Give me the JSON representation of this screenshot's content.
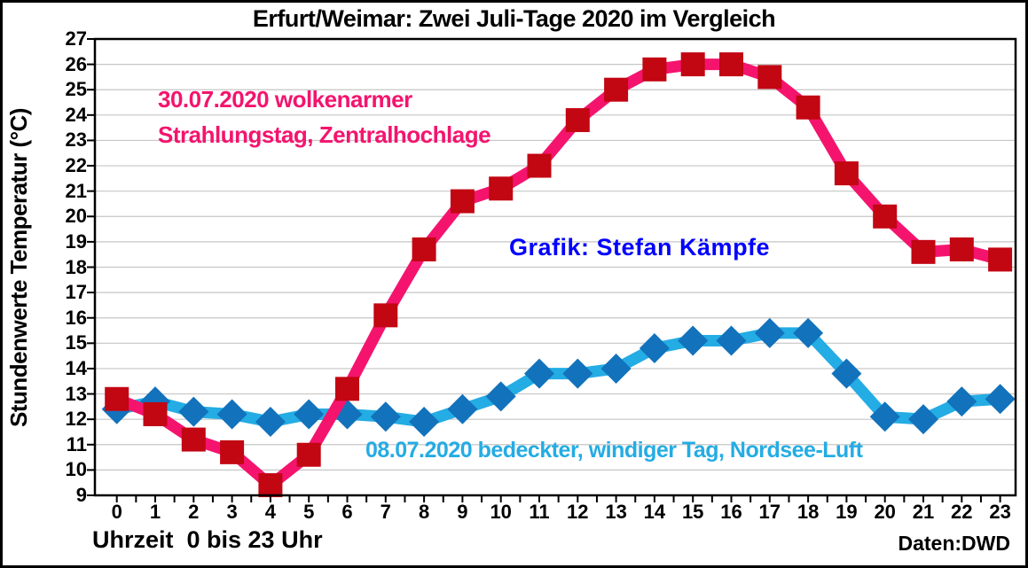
{
  "title": "Erfurt/Weimar: Zwei Juli-Tage 2020 im Vergleich",
  "y_axis_label": "Stundenwerte Temperatur (°C)",
  "x_axis_caption": "Uhrzeit  0 bis 23 Uhr",
  "source": "Daten:DWD",
  "credit": "Grafik: Stefan Kämpfe",
  "annotations": {
    "pink_line1": "30.07.2020 wolkenarmer",
    "pink_line2": "Strahlungstag, Zentralhochlage",
    "blue": "08.07.2020 bedeckter, windiger Tag, Nordsee-Luft"
  },
  "colors": {
    "pink_line": "#F4146E",
    "pink_marker": "#C20612",
    "blue_line": "#24ACE4",
    "blue_marker": "#1272BC",
    "credit_blue": "#0000FF",
    "grid": "#C6C6C6",
    "axis": "#000000"
  },
  "chart_data": {
    "type": "line",
    "x": [
      0,
      1,
      2,
      3,
      4,
      5,
      6,
      7,
      8,
      9,
      10,
      11,
      12,
      13,
      14,
      15,
      16,
      17,
      18,
      19,
      20,
      21,
      22,
      23
    ],
    "series": [
      {
        "name": "30.07.2020 wolkenarmer Strahlungstag, Zentralhochlage",
        "color": "#F4146E",
        "marker": "square",
        "marker_color": "#C20612",
        "values": [
          12.8,
          12.2,
          11.2,
          10.7,
          9.4,
          10.6,
          13.2,
          16.1,
          18.7,
          20.6,
          21.1,
          22.0,
          23.8,
          25.0,
          25.8,
          26.0,
          26.0,
          25.5,
          24.3,
          21.7,
          20.0,
          18.6,
          18.7,
          18.3
        ]
      },
      {
        "name": "08.07.2020 bedeckter, windiger Tag, Nordsee-Luft",
        "color": "#24ACE4",
        "marker": "diamond",
        "marker_color": "#1272BC",
        "values": [
          12.4,
          12.7,
          12.3,
          12.2,
          11.9,
          12.2,
          12.2,
          12.1,
          11.9,
          12.4,
          12.9,
          13.8,
          13.8,
          14.0,
          14.8,
          15.1,
          15.1,
          15.4,
          15.4,
          13.8,
          12.1,
          12.0,
          12.7,
          12.8
        ]
      }
    ],
    "xlabel": "Uhrzeit  0 bis 23 Uhr",
    "ylabel": "Stundenwerte Temperatur (°C)",
    "ylim": [
      9,
      27
    ],
    "y_tick_step": 1,
    "grid": true,
    "legend_position": "inline-annotations"
  }
}
